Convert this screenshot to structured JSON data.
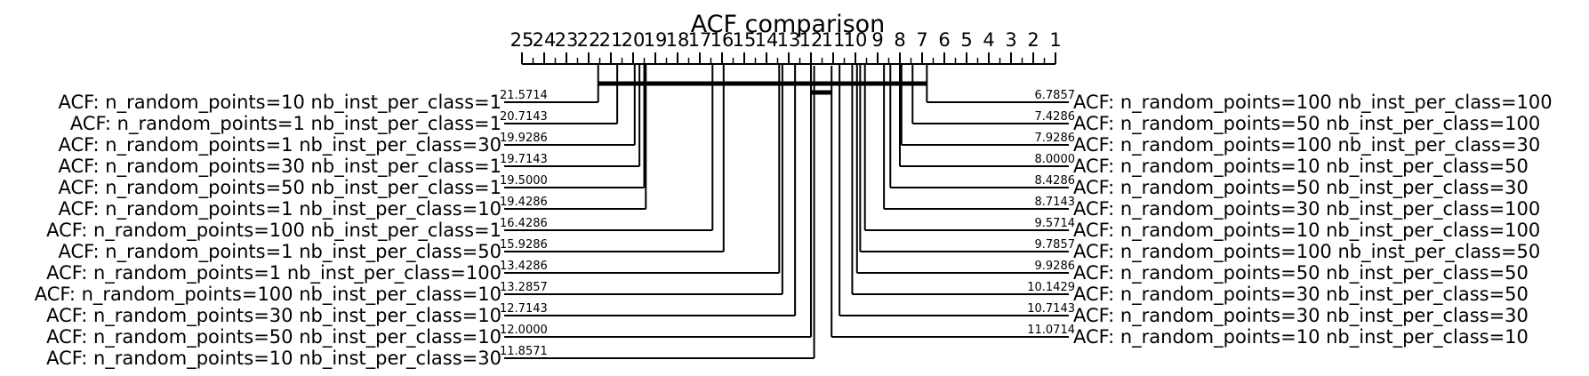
{
  "chart_data": {
    "type": "critical-difference-diagram",
    "title": "ACF comparison",
    "axis": {
      "range": [
        1,
        25
      ],
      "direction": "descending",
      "ticks": [
        25,
        24,
        23,
        22,
        21,
        20,
        19,
        18,
        17,
        16,
        15,
        14,
        13,
        12,
        11,
        10,
        9,
        8,
        7,
        6,
        5,
        4,
        3,
        2,
        1
      ]
    },
    "left_methods": [
      {
        "name": "ACF: n_random_points=10 nb_inst_per_class=1",
        "rank": 21.5714,
        "rank_label": "21.5714"
      },
      {
        "name": "ACF: n_random_points=1 nb_inst_per_class=1",
        "rank": 20.7143,
        "rank_label": "20.7143"
      },
      {
        "name": "ACF: n_random_points=1 nb_inst_per_class=30",
        "rank": 19.9286,
        "rank_label": "19.9286"
      },
      {
        "name": "ACF: n_random_points=30 nb_inst_per_class=1",
        "rank": 19.7143,
        "rank_label": "19.7143"
      },
      {
        "name": "ACF: n_random_points=50 nb_inst_per_class=1",
        "rank": 19.5,
        "rank_label": "19.5000"
      },
      {
        "name": "ACF: n_random_points=1 nb_inst_per_class=10",
        "rank": 19.4286,
        "rank_label": "19.4286"
      },
      {
        "name": "ACF: n_random_points=100 nb_inst_per_class=1",
        "rank": 16.4286,
        "rank_label": "16.4286"
      },
      {
        "name": "ACF: n_random_points=1 nb_inst_per_class=50",
        "rank": 15.9286,
        "rank_label": "15.9286"
      },
      {
        "name": "ACF: n_random_points=1 nb_inst_per_class=100",
        "rank": 13.4286,
        "rank_label": "13.4286"
      },
      {
        "name": "ACF: n_random_points=100 nb_inst_per_class=10",
        "rank": 13.2857,
        "rank_label": "13.2857"
      },
      {
        "name": "ACF: n_random_points=30 nb_inst_per_class=10",
        "rank": 12.7143,
        "rank_label": "12.7143"
      },
      {
        "name": "ACF: n_random_points=50 nb_inst_per_class=10",
        "rank": 12.0,
        "rank_label": "12.0000"
      },
      {
        "name": "ACF: n_random_points=10 nb_inst_per_class=30",
        "rank": 11.8571,
        "rank_label": "11.8571"
      }
    ],
    "right_methods": [
      {
        "name": "ACF: n_random_points=100 nb_inst_per_class=100",
        "rank": 6.7857,
        "rank_label": "6.7857"
      },
      {
        "name": "ACF: n_random_points=50 nb_inst_per_class=100",
        "rank": 7.4286,
        "rank_label": "7.4286"
      },
      {
        "name": "ACF: n_random_points=100 nb_inst_per_class=30",
        "rank": 7.9286,
        "rank_label": "7.9286"
      },
      {
        "name": "ACF: n_random_points=10 nb_inst_per_class=50",
        "rank": 8.0,
        "rank_label": "8.0000"
      },
      {
        "name": "ACF: n_random_points=50 nb_inst_per_class=30",
        "rank": 8.4286,
        "rank_label": "8.4286"
      },
      {
        "name": "ACF: n_random_points=30 nb_inst_per_class=100",
        "rank": 8.7143,
        "rank_label": "8.7143"
      },
      {
        "name": "ACF: n_random_points=10 nb_inst_per_class=100",
        "rank": 9.5714,
        "rank_label": "9.5714"
      },
      {
        "name": "ACF: n_random_points=100 nb_inst_per_class=50",
        "rank": 9.7857,
        "rank_label": "9.7857"
      },
      {
        "name": "ACF: n_random_points=50 nb_inst_per_class=50",
        "rank": 9.9286,
        "rank_label": "9.9286"
      },
      {
        "name": "ACF: n_random_points=30 nb_inst_per_class=50",
        "rank": 10.1429,
        "rank_label": "10.1429"
      },
      {
        "name": "ACF: n_random_points=30 nb_inst_per_class=30",
        "rank": 10.7143,
        "rank_label": "10.7143"
      },
      {
        "name": "ACF: n_random_points=10 nb_inst_per_class=10",
        "rank": 11.0714,
        "rank_label": "11.0714"
      }
    ],
    "cliques": [
      {
        "from": 6.7857,
        "to": 21.5714
      },
      {
        "from": 11.0714,
        "to": 11.8571
      },
      {
        "from": 11.8571,
        "to": 12.0
      }
    ],
    "colors": {
      "line": "#000000",
      "background": "#ffffff"
    }
  }
}
